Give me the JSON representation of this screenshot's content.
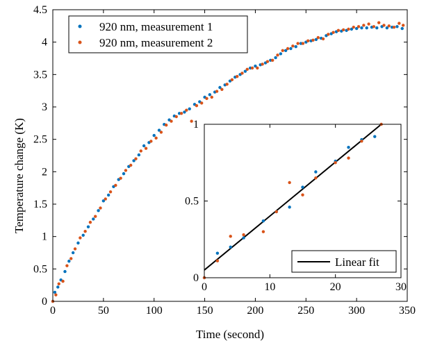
{
  "chart_data": {
    "type": "scatter",
    "main": {
      "xlabel": "Time (second)",
      "ylabel": "Temperature change (K)",
      "xlim": [
        0,
        350
      ],
      "ylim": [
        0,
        4.5
      ],
      "xticks": [
        "0",
        "50",
        "100",
        "150",
        "200",
        "250",
        "300",
        "350"
      ],
      "yticks": [
        "0",
        "0.5",
        "1",
        "1.5",
        "2",
        "2.5",
        "3",
        "3.5",
        "4",
        "4.5"
      ],
      "legend_position": "top-right",
      "series": [
        {
          "name": "920 nm, measurement 1",
          "color": "#0072BD",
          "x": [
            0,
            2,
            5,
            8,
            12,
            16,
            20,
            25,
            30,
            35,
            40,
            45,
            50,
            55,
            60,
            65,
            70,
            75,
            80,
            85,
            90,
            95,
            100,
            105,
            110,
            115,
            120,
            125,
            130,
            135,
            140,
            145,
            150,
            155,
            160,
            165,
            170,
            175,
            180,
            185,
            190,
            195,
            200,
            205,
            210,
            215,
            220,
            225,
            230,
            235,
            240,
            245,
            250,
            255,
            260,
            265,
            270,
            275,
            280,
            285,
            290,
            295,
            300,
            305,
            310,
            315,
            320,
            325,
            330,
            335,
            340,
            345
          ],
          "y": [
            0,
            0.14,
            0.22,
            0.33,
            0.46,
            0.62,
            0.75,
            0.9,
            1.02,
            1.15,
            1.27,
            1.4,
            1.55,
            1.64,
            1.77,
            1.88,
            1.97,
            2.08,
            2.17,
            2.26,
            2.4,
            2.45,
            2.56,
            2.64,
            2.73,
            2.8,
            2.86,
            2.9,
            2.92,
            2.97,
            3.04,
            3.08,
            3.15,
            3.19,
            3.23,
            3.3,
            3.34,
            3.4,
            3.46,
            3.5,
            3.55,
            3.6,
            3.63,
            3.65,
            3.68,
            3.72,
            3.76,
            3.82,
            3.87,
            3.9,
            3.93,
            3.98,
            4.0,
            4.02,
            4.04,
            4.06,
            4.1,
            4.13,
            4.16,
            4.17,
            4.18,
            4.2,
            4.21,
            4.22,
            4.22,
            4.23,
            4.22,
            4.24,
            4.22,
            4.23,
            4.24,
            4.21
          ]
        },
        {
          "name": "920 nm, measurement 2",
          "color": "#D95319",
          "x": [
            0,
            3,
            6,
            10,
            14,
            18,
            22,
            27,
            32,
            37,
            42,
            47,
            52,
            57,
            62,
            67,
            72,
            77,
            82,
            87,
            92,
            97,
            102,
            107,
            112,
            117,
            122,
            127,
            132,
            137,
            142,
            147,
            152,
            157,
            162,
            167,
            172,
            177,
            182,
            187,
            192,
            197,
            202,
            207,
            212,
            217,
            222,
            227,
            232,
            237,
            242,
            247,
            252,
            257,
            262,
            267,
            272,
            277,
            282,
            287,
            292,
            297,
            302,
            307,
            312,
            317,
            322,
            327,
            332,
            337,
            342,
            346
          ],
          "y": [
            0,
            0.1,
            0.27,
            0.31,
            0.55,
            0.66,
            0.81,
            0.98,
            1.08,
            1.22,
            1.31,
            1.44,
            1.58,
            1.69,
            1.79,
            1.9,
            2.02,
            2.1,
            2.2,
            2.32,
            2.36,
            2.47,
            2.52,
            2.61,
            2.72,
            2.78,
            2.85,
            2.9,
            2.95,
            2.78,
            3.02,
            3.06,
            3.13,
            3.15,
            3.24,
            3.27,
            3.35,
            3.42,
            3.47,
            3.52,
            3.58,
            3.6,
            3.6,
            3.66,
            3.7,
            3.72,
            3.8,
            3.87,
            3.9,
            3.94,
            3.98,
            3.98,
            4.02,
            4.03,
            4.07,
            4.05,
            4.12,
            4.15,
            4.18,
            4.19,
            4.2,
            4.23,
            4.24,
            4.26,
            4.28,
            4.24,
            4.3,
            4.26,
            4.25,
            4.23,
            4.29,
            4.26
          ]
        }
      ]
    },
    "inset": {
      "xlim": [
        0,
        30
      ],
      "ylim": [
        0,
        1
      ],
      "xticks": [
        "0",
        "10",
        "20",
        "30"
      ],
      "yticks": [
        "0",
        "0.5",
        "1"
      ],
      "legend_position": "bottom-right",
      "fit": {
        "name": "Linear fit",
        "color": "#000000",
        "x": [
          0,
          27
        ],
        "y": [
          0.05,
          1.0
        ]
      },
      "series": [
        {
          "name": "920 nm, measurement 1",
          "color": "#0072BD",
          "x": [
            0,
            2,
            4,
            6,
            9,
            11,
            13,
            15,
            17,
            20,
            22,
            24,
            26
          ],
          "y": [
            0,
            0.16,
            0.2,
            0.26,
            0.37,
            0.43,
            0.46,
            0.59,
            0.69,
            0.76,
            0.85,
            0.9,
            0.92
          ]
        },
        {
          "name": "920 nm, measurement 2",
          "color": "#D95319",
          "x": [
            0,
            2,
            4,
            6,
            9,
            11,
            13,
            15,
            17,
            20,
            22,
            24,
            27
          ],
          "y": [
            0,
            0.11,
            0.27,
            0.28,
            0.3,
            0.43,
            0.62,
            0.54,
            0.65,
            0.75,
            0.78,
            0.89,
            1.0
          ]
        }
      ]
    }
  }
}
